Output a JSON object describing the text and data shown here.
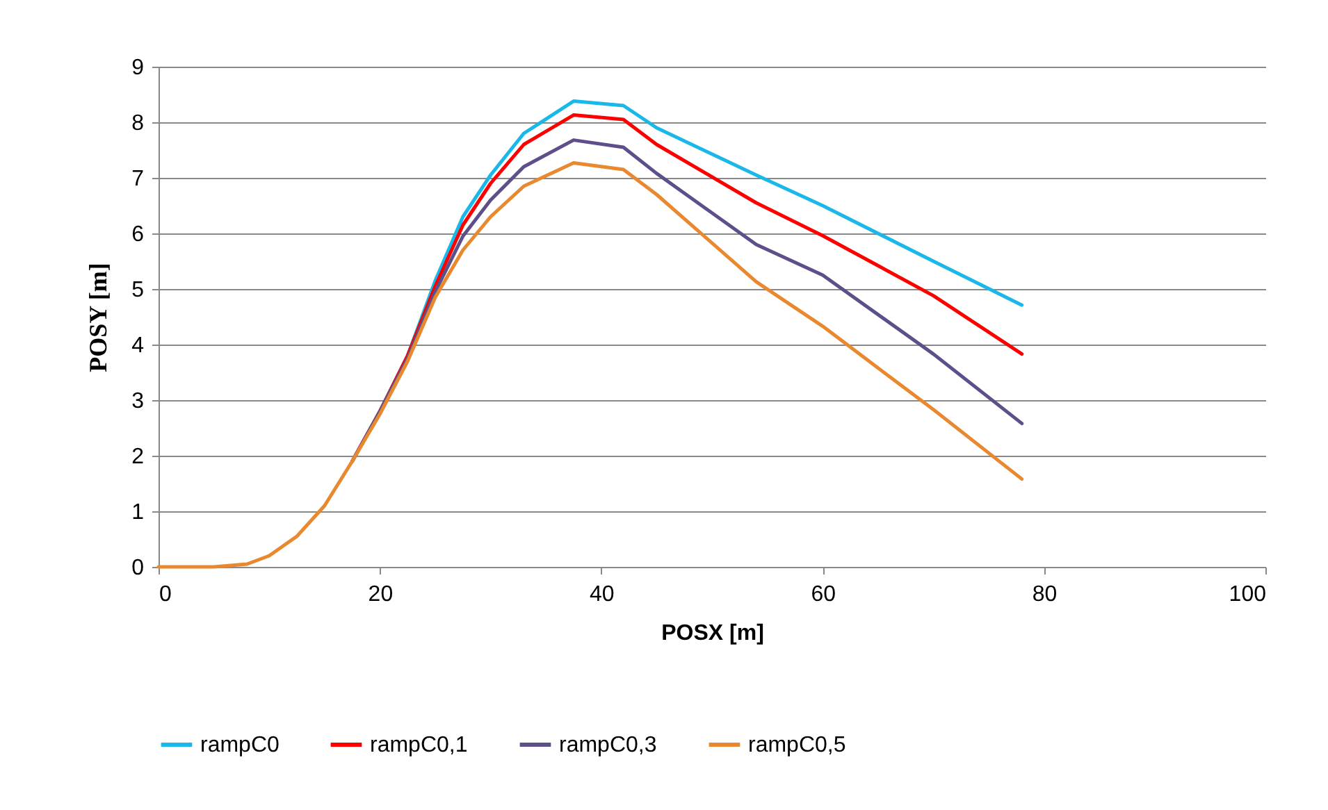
{
  "chart_data": {
    "type": "line",
    "xlabel": "POSX [m]",
    "ylabel": "POSY [m]",
    "x": [
      0,
      5,
      8,
      10,
      12.5,
      15,
      17.5,
      20,
      22.5,
      25,
      27.5,
      30,
      33,
      37.5,
      42,
      45,
      54,
      60,
      70,
      78
    ],
    "series": [
      {
        "name": "rampC0",
        "color": "#1ab8e8",
        "values": [
          null,
          null,
          null,
          null,
          null,
          null,
          null,
          2.8,
          3.8,
          5.15,
          6.3,
          7.05,
          7.8,
          8.38,
          8.3,
          7.9,
          7.05,
          6.5,
          5.5,
          4.71
        ]
      },
      {
        "name": "rampC0,1",
        "color": "#ff0000",
        "values": [
          null,
          null,
          null,
          null,
          null,
          null,
          1.9,
          2.8,
          3.8,
          5.05,
          6.15,
          6.9,
          7.6,
          8.13,
          8.05,
          7.6,
          6.55,
          5.96,
          4.88,
          3.83
        ]
      },
      {
        "name": "rampC0,3",
        "color": "#5e4f8a",
        "values": [
          null,
          null,
          null,
          null,
          null,
          null,
          1.9,
          2.8,
          3.75,
          4.95,
          5.95,
          6.6,
          7.2,
          7.68,
          7.55,
          7.08,
          5.8,
          5.25,
          3.83,
          2.58
        ]
      },
      {
        "name": "rampC0,5",
        "color": "#e8892f",
        "values": [
          0,
          0,
          0.05,
          0.2,
          0.55,
          1.1,
          1.9,
          2.75,
          3.7,
          4.85,
          5.7,
          6.3,
          6.85,
          7.27,
          7.15,
          6.7,
          5.13,
          4.33,
          2.83,
          1.58
        ]
      }
    ],
    "xlim": [
      0,
      100
    ],
    "xticks": [
      0,
      20,
      40,
      60,
      80,
      100
    ],
    "ylim": [
      0,
      9
    ],
    "yticks": [
      0,
      1,
      2,
      3,
      4,
      5,
      6,
      7,
      8,
      9
    ],
    "grid": "y",
    "legend": "bottom",
    "marker": "none",
    "line_style": "solid"
  }
}
